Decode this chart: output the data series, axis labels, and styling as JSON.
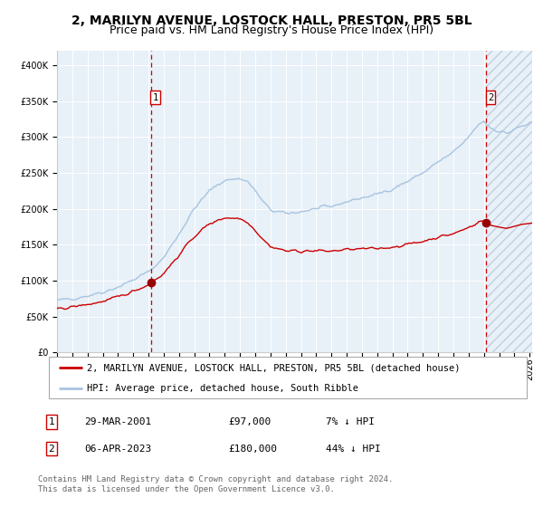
{
  "title": "2, MARILYN AVENUE, LOSTOCK HALL, PRESTON, PR5 5BL",
  "subtitle": "Price paid vs. HM Land Registry's House Price Index (HPI)",
  "ylim": [
    0,
    420000
  ],
  "yticks": [
    0,
    50000,
    100000,
    150000,
    200000,
    250000,
    300000,
    350000,
    400000
  ],
  "ytick_labels": [
    "£0",
    "£50K",
    "£100K",
    "£150K",
    "£200K",
    "£250K",
    "£300K",
    "£350K",
    "£400K"
  ],
  "hpi_color": "#a8c4e0",
  "property_color": "#cc0000",
  "marker_color": "#990000",
  "dashed_line_color": "#cc0000",
  "bg_color": "#e8f0f8",
  "hatch_color": "#c0d0e0",
  "sale1_date_idx": 74,
  "sale1_price": 97000,
  "sale1_label": "1",
  "sale2_date_idx": 338,
  "sale2_price": 180000,
  "sale2_label": "2",
  "legend_property": "2, MARILYN AVENUE, LOSTOCK HALL, PRESTON, PR5 5BL (detached house)",
  "legend_hpi": "HPI: Average price, detached house, South Ribble",
  "table_row1": [
    "1",
    "29-MAR-2001",
    "£97,000",
    "7% ↓ HPI"
  ],
  "table_row2": [
    "2",
    "06-APR-2023",
    "£180,000",
    "44% ↓ HPI"
  ],
  "footnote": "Contains HM Land Registry data © Crown copyright and database right 2024.\nThis data is licensed under the Open Government Licence v3.0.",
  "title_fontsize": 10,
  "subtitle_fontsize": 9,
  "tick_fontsize": 7,
  "legend_fontsize": 7.5,
  "table_fontsize": 8,
  "footnote_fontsize": 6.5
}
